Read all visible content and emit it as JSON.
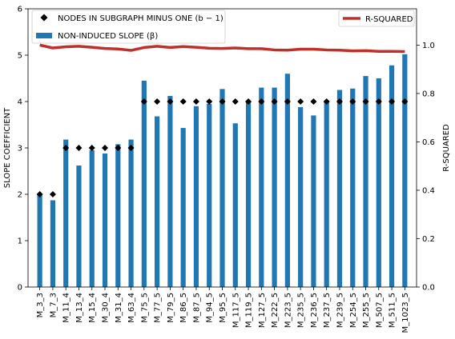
{
  "chart_data": {
    "type": "bar",
    "categories": [
      "M_3_3",
      "M_7_3",
      "M_11_4",
      "M_13_4",
      "M_15_4",
      "M_30_4",
      "M_31_4",
      "M_63_4",
      "M_75_5",
      "M_77_5",
      "M_79_5",
      "M_86_5",
      "M_87_5",
      "M_94_5",
      "M_95_5",
      "M_117_5",
      "M_119_5",
      "M_127_5",
      "M_222_5",
      "M_223_5",
      "M_235_5",
      "M_236_5",
      "M_237_5",
      "M_239_5",
      "M_254_5",
      "M_255_5",
      "M_507_5",
      "M_511_5",
      "M_1023_5"
    ],
    "series": [
      {
        "name": "NON-INDUCED SLOPE (β)",
        "type": "bar",
        "axis": "left",
        "color": "#1f77b4",
        "values": [
          2.0,
          1.87,
          3.18,
          2.62,
          2.95,
          2.88,
          3.08,
          3.18,
          4.45,
          3.68,
          4.12,
          3.43,
          3.9,
          3.95,
          4.27,
          3.53,
          4.0,
          4.3,
          4.3,
          4.6,
          3.88,
          3.7,
          4.02,
          4.25,
          4.28,
          4.55,
          4.5,
          4.78,
          5.02
        ]
      },
      {
        "name": "NODES IN SUBGRAPH MINUS ONE (b − 1)",
        "type": "scatter",
        "axis": "left",
        "color": "#000000",
        "values": [
          2,
          2,
          3,
          3,
          3,
          3,
          3,
          3,
          4,
          4,
          4,
          4,
          4,
          4,
          4,
          4,
          4,
          4,
          4,
          4,
          4,
          4,
          4,
          4,
          4,
          4,
          4,
          4,
          4
        ]
      },
      {
        "name": "R-SQUARED",
        "type": "line",
        "axis": "right",
        "color": "#c0302b",
        "values": [
          1.0,
          0.988,
          0.993,
          0.995,
          0.991,
          0.986,
          0.984,
          0.978,
          0.99,
          0.995,
          0.99,
          0.994,
          0.991,
          0.987,
          0.986,
          0.988,
          0.985,
          0.985,
          0.98,
          0.979,
          0.983,
          0.983,
          0.98,
          0.979,
          0.976,
          0.977,
          0.974,
          0.974,
          0.973
        ]
      }
    ],
    "ylabel": "SLOPE COEFFICIENT",
    "ylabel_right": "R-SQUARED",
    "ylim": [
      0,
      6
    ],
    "ylim_right": [
      0,
      1.15
    ],
    "yticks": [
      0,
      1,
      2,
      3,
      4,
      5,
      6
    ],
    "yticks_right": [
      0.0,
      0.2,
      0.4,
      0.6,
      0.8,
      1.0
    ],
    "grid": false,
    "legend_left_placement": "top-left",
    "legend_right_placement": "top-right"
  }
}
